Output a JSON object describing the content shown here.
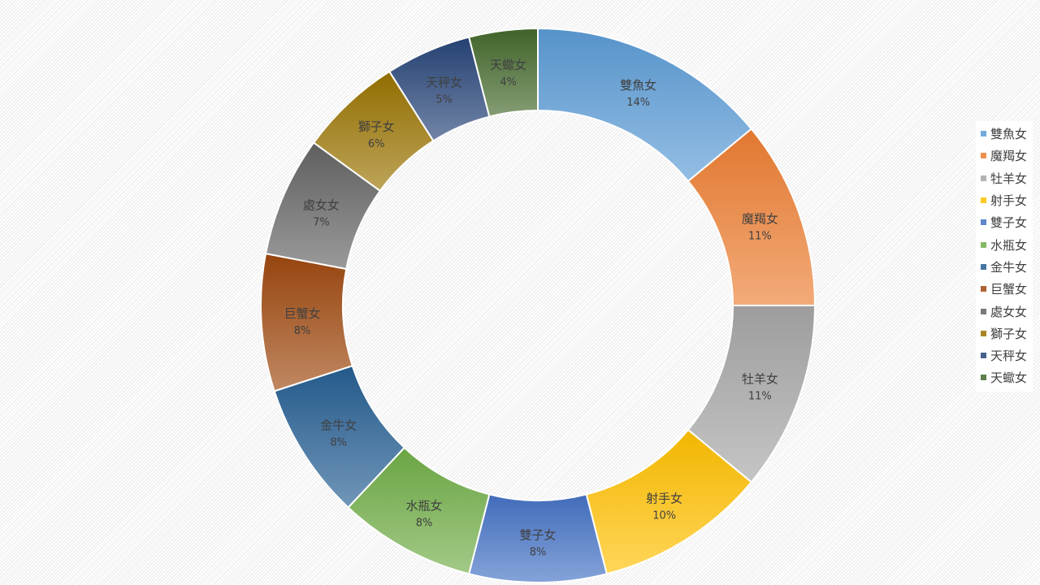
{
  "chart_data": {
    "type": "pie",
    "variant": "doughnut",
    "title": "",
    "legend_position": "right",
    "slices": [
      {
        "label": "雙魚女",
        "percent_label": "14%",
        "value": 14,
        "color": "#5b9bd5"
      },
      {
        "label": "魔羯女",
        "percent_label": "11%",
        "value": 11,
        "color": "#ed7d31"
      },
      {
        "label": "牡羊女",
        "percent_label": "11%",
        "value": 11,
        "color": "#a5a5a5"
      },
      {
        "label": "射手女",
        "percent_label": "10%",
        "value": 10,
        "color": "#ffc000"
      },
      {
        "label": "雙子女",
        "percent_label": "8%",
        "value": 8,
        "color": "#4472c4"
      },
      {
        "label": "水瓶女",
        "percent_label": "8%",
        "value": 8,
        "color": "#70ad47"
      },
      {
        "label": "金牛女",
        "percent_label": "8%",
        "value": 8,
        "color": "#255e91"
      },
      {
        "label": "巨蟹女",
        "percent_label": "8%",
        "value": 8,
        "color": "#9e480e"
      },
      {
        "label": "處女女",
        "percent_label": "7%",
        "value": 7,
        "color": "#636363"
      },
      {
        "label": "獅子女",
        "percent_label": "6%",
        "value": 6,
        "color": "#997300"
      },
      {
        "label": "天秤女",
        "percent_label": "5%",
        "value": 5,
        "color": "#264478"
      },
      {
        "label": "天蠍女",
        "percent_label": "4%",
        "value": 4,
        "color": "#43682b"
      }
    ]
  }
}
